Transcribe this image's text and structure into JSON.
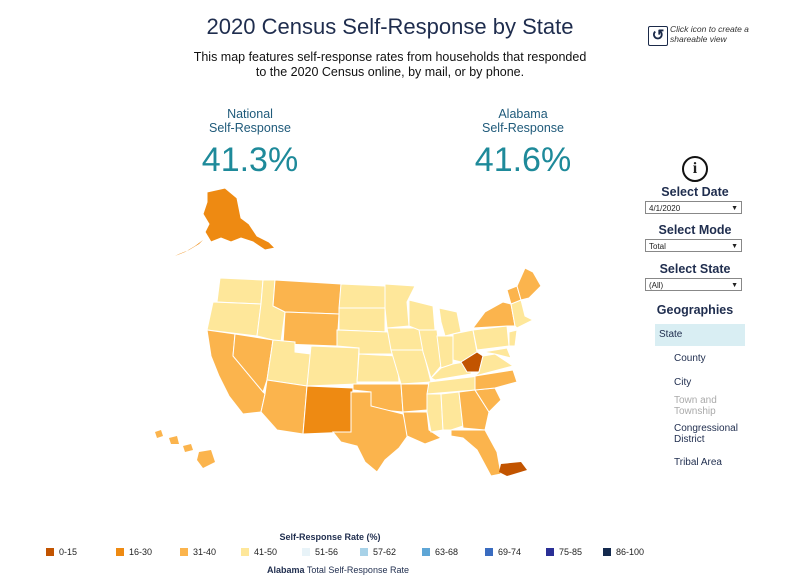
{
  "header": {
    "title": "2020 Census Self-Response by State",
    "subtitle": "This map features self-response rates from households that responded to the 2020 Census online, by mail, or by phone.",
    "share_text": "Click icon to create a shareable view"
  },
  "kpis": {
    "national_label_1": "National",
    "national_label_2": "Self-Response",
    "national_value": "41.3%",
    "state_label_1": "Alabama",
    "state_label_2": "Self-Response",
    "state_value": "41.6%"
  },
  "controls": {
    "date_label": "Select Date",
    "date_value": "4/1/2020",
    "mode_label": "Select Mode",
    "mode_value": "Total",
    "state_label": "Select State",
    "state_value": "(All)"
  },
  "geographies": {
    "title": "Geographies",
    "items": [
      "State",
      "County",
      "City",
      "Town and Township",
      "Congressional District",
      "Tribal Area"
    ]
  },
  "legend": {
    "title": "Self-Response Rate (%)",
    "items": [
      {
        "label": "0-15",
        "color": "#c25400"
      },
      {
        "label": "16-30",
        "color": "#ee8a12"
      },
      {
        "label": "31-40",
        "color": "#fbb44d"
      },
      {
        "label": "41-50",
        "color": "#fee79a"
      },
      {
        "label": "51-56",
        "color": "#e8f3f8"
      },
      {
        "label": "57-62",
        "color": "#a8d2e8"
      },
      {
        "label": "63-68",
        "color": "#5ea6d6"
      },
      {
        "label": "69-74",
        "color": "#3a6cc0"
      },
      {
        "label": "75-85",
        "color": "#2a2f96"
      },
      {
        "label": "86-100",
        "color": "#142a4e"
      }
    ]
  },
  "footnote": {
    "state": "Alabama",
    "text": "Total Self-Response Rate"
  },
  "icons": {
    "share": "share-icon",
    "info": "info-icon",
    "dropdown": "chevron-down-icon"
  }
}
